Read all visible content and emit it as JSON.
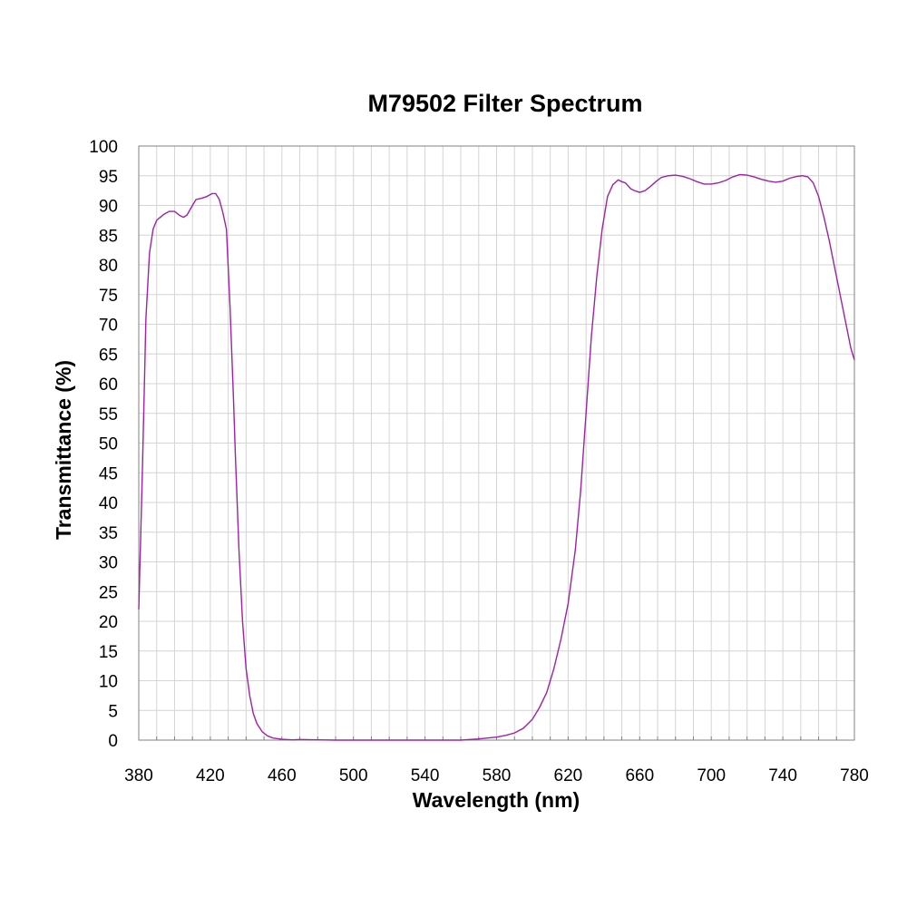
{
  "chart_data": {
    "type": "line",
    "title": "M79502 Filter Spectrum",
    "xlabel": "Wavelength (nm)",
    "ylabel": "Transmittance (%)",
    "xlim": [
      380,
      780
    ],
    "ylim": [
      0,
      100
    ],
    "x_ticks": [
      380,
      420,
      460,
      500,
      540,
      580,
      620,
      660,
      700,
      740,
      780
    ],
    "y_ticks": [
      0,
      5,
      10,
      15,
      20,
      25,
      30,
      35,
      40,
      45,
      50,
      55,
      60,
      65,
      70,
      75,
      80,
      85,
      90,
      95,
      100
    ],
    "grid": true,
    "legend": "none",
    "line_color": "#a020a8",
    "series": [
      {
        "x": [
          380,
          382,
          384,
          386,
          388,
          390,
          392,
          394,
          397,
          400,
          403,
          405,
          407,
          410,
          412,
          415,
          418,
          421,
          423,
          425,
          427,
          429,
          431,
          432,
          433,
          434,
          435,
          436,
          437,
          438,
          440,
          442,
          444,
          446,
          449,
          452,
          455,
          460,
          466,
          470,
          480,
          490,
          500,
          540,
          560,
          570,
          580,
          585,
          590,
          595,
          600,
          604,
          608,
          612,
          616,
          620,
          624,
          627,
          630,
          633,
          636,
          639,
          642,
          645,
          648,
          650,
          652,
          655,
          657,
          660,
          663,
          666,
          669,
          672,
          676,
          680,
          684,
          688,
          692,
          696,
          700,
          704,
          708,
          712,
          716,
          720,
          724,
          728,
          732,
          736,
          740,
          744,
          748,
          751,
          754,
          757,
          760,
          763,
          766,
          770,
          774,
          778,
          780
        ],
        "y": [
          22,
          45,
          71,
          82,
          86,
          87.5,
          88,
          88.5,
          89,
          89,
          88.3,
          88,
          88.4,
          90,
          91,
          91.2,
          91.5,
          92,
          92,
          91,
          88.8,
          86,
          73,
          65,
          57,
          48,
          40,
          32,
          26,
          20,
          12,
          7.5,
          4.5,
          2.8,
          1.4,
          0.7,
          0.35,
          0.15,
          0.05,
          0.1,
          0.05,
          0,
          0,
          0,
          0,
          0.2,
          0.5,
          0.8,
          1.2,
          2,
          3.5,
          5.5,
          8,
          12,
          17,
          23,
          32,
          42,
          55,
          68,
          78,
          86,
          91.5,
          93.5,
          94.3,
          94,
          93.8,
          92.8,
          92.5,
          92.2,
          92.5,
          93.2,
          94,
          94.7,
          95,
          95.1,
          94.9,
          94.5,
          94,
          93.6,
          93.6,
          93.8,
          94.2,
          94.8,
          95.2,
          95.1,
          94.8,
          94.4,
          94.1,
          93.9,
          94.1,
          94.6,
          94.9,
          95,
          94.8,
          93.8,
          91.5,
          88,
          84,
          78,
          72,
          66,
          64
        ]
      }
    ]
  }
}
